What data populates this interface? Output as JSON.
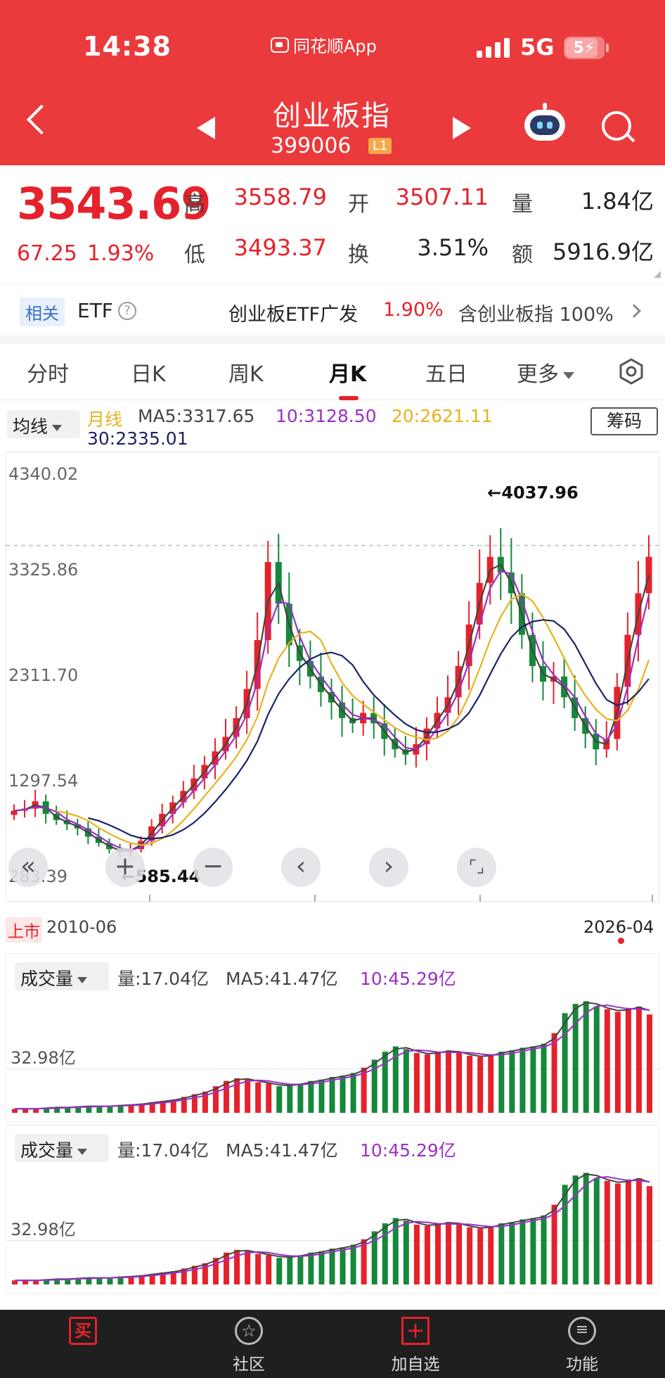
{
  "status_bar": {
    "time": "14:38",
    "app_name": "同花顺App",
    "network": "5G",
    "battery": "5"
  },
  "header": {
    "title": "创业板指",
    "code": "399006",
    "level_badge": "L1"
  },
  "quote": {
    "price": "3543.69",
    "change": "67.25",
    "change_pct": "1.93%",
    "high_label": "高",
    "high": "3558.79",
    "open_label": "开",
    "open": "3507.11",
    "volume_label": "量",
    "volume": "1.84亿",
    "low_label": "低",
    "low": "3493.37",
    "turnover_label": "换",
    "turnover": "3.51%",
    "amount_label": "额",
    "amount": "5916.9亿"
  },
  "etf": {
    "tag": "相关",
    "label": "ETF",
    "help": "?",
    "name": "创业板ETF广发",
    "pct": "1.90%",
    "contain": "含创业板指 100%"
  },
  "tabs": [
    {
      "label": "分时"
    },
    {
      "label": "日K"
    },
    {
      "label": "周K"
    },
    {
      "label": "月K"
    },
    {
      "label": "五日"
    },
    {
      "label": "更多"
    }
  ],
  "ma_legend": {
    "select": "均线",
    "title": "月线",
    "ma5": "MA5:3317.65",
    "ma10": "10:3128.50",
    "ma20": "20:2621.11",
    "ma30": "30:2335.01",
    "chips_button": "筹码",
    "colors": {
      "ma5": "#444444",
      "ma10": "#9b2fc7",
      "ma20": "#e8b21e",
      "ma30": "#1a2466"
    }
  },
  "chart_data": {
    "type": "candlestick",
    "y_ticks": [
      "4340.02",
      "3325.86",
      "2311.70",
      "1297.54",
      "283.39"
    ],
    "ylim": [
      283.39,
      4340.02
    ],
    "max_label": "←4037.96",
    "min_label": "←585.44",
    "x_start_tag": "上市",
    "x_start": "2010-06",
    "x_end": "2026-04",
    "close_series": [
      1010,
      1030,
      1100,
      980,
      920,
      880,
      840,
      760,
      700,
      640,
      615,
      640,
      720,
      860,
      980,
      1090,
      1200,
      1320,
      1450,
      1580,
      1720,
      1900,
      2180,
      2650,
      3400,
      3000,
      2600,
      2450,
      2300,
      2150,
      2050,
      1900,
      1850,
      1950,
      1850,
      1700,
      1600,
      1550,
      1650,
      1800,
      1950,
      2100,
      2400,
      2800,
      3200,
      3450,
      3300,
      3100,
      2700,
      2400,
      2250,
      2300,
      2100,
      1900,
      1750,
      1600,
      1700,
      2200,
      2700,
      3100,
      3450
    ],
    "ma_values": {
      "ma5": 3317.65,
      "ma10": 3128.5,
      "ma20": 2621.11,
      "ma30": 2335.01
    }
  },
  "volume_panel": {
    "select": "成交量",
    "vol": "量:17.04亿",
    "ma5": "MA5:41.47亿",
    "ma10": "10:45.29亿",
    "axis_label": "32.98亿",
    "values": [
      3,
      3,
      3,
      4,
      4,
      4,
      5,
      5,
      5,
      5,
      6,
      6,
      7,
      8,
      9,
      10,
      12,
      14,
      16,
      20,
      24,
      26,
      25,
      23,
      22,
      20,
      21,
      22,
      24,
      25,
      27,
      28,
      30,
      34,
      40,
      46,
      50,
      48,
      45,
      44,
      46,
      47,
      45,
      43,
      42,
      44,
      46,
      47,
      49,
      50,
      52,
      60,
      75,
      82,
      84,
      80,
      78,
      76,
      79,
      80,
      74
    ]
  },
  "controls": {
    "rewind": "«",
    "zoom_in": "+",
    "zoom_out": "−",
    "prev": "‹",
    "next": "›",
    "fullscreen": "⌜⌟"
  },
  "bottom_nav": [
    {
      "label": "",
      "icon": "buy-icon",
      "glyph": "买"
    },
    {
      "label": "社区",
      "icon": "community-icon"
    },
    {
      "label": "加自选",
      "icon": "add-icon",
      "glyph": "+"
    },
    {
      "label": "功能",
      "icon": "function-icon",
      "glyph": "≡"
    }
  ]
}
